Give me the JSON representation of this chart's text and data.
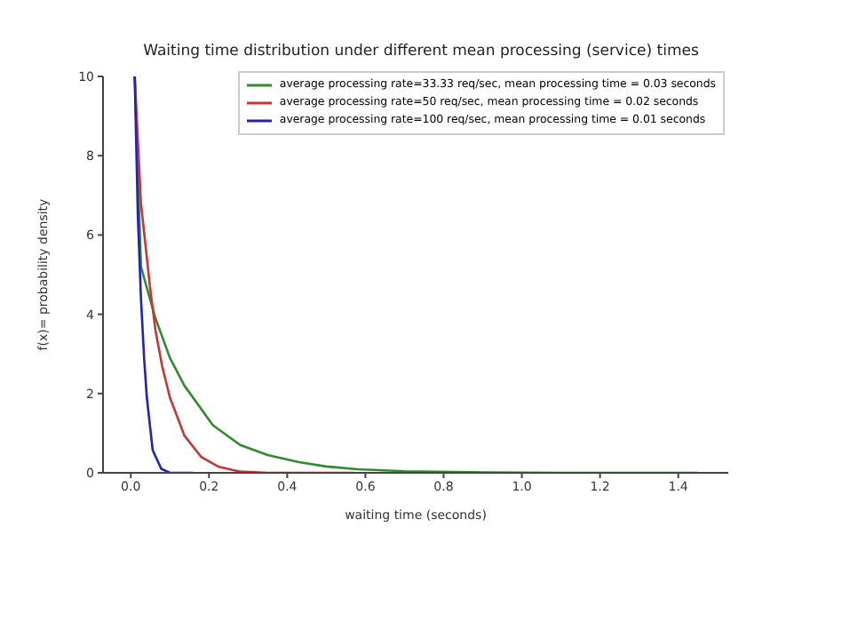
{
  "chart_data": {
    "type": "line",
    "title": "Waiting time distribution under different mean processing (service) times",
    "xlabel": "waiting time (seconds)",
    "ylabel": "f(x)= probability density",
    "series": [
      {
        "name": "average processing rate=33.33 req/sec, mean processing time = 0.03 seconds",
        "color": "#2e8b2e",
        "x": [
          0.01,
          0.026,
          0.063,
          0.1,
          0.137,
          0.21,
          0.28,
          0.35,
          0.43,
          0.5,
          0.58,
          0.7,
          0.9,
          1.1,
          1.3,
          1.45
        ],
        "values": [
          10,
          5.2,
          3.9,
          2.9,
          2.2,
          1.2,
          0.7,
          0.45,
          0.27,
          0.16,
          0.09,
          0.04,
          0.01,
          0,
          0,
          0
        ]
      },
      {
        "name": "average processing rate=50 req/sec, mean processing time = 0.02 seconds",
        "color": "#cc3333",
        "x": [
          0.01,
          0.026,
          0.049,
          0.063,
          0.08,
          0.1,
          0.137,
          0.18,
          0.225,
          0.28,
          0.35,
          0.45,
          0.57
        ],
        "values": [
          10,
          6.8,
          4.7,
          3.6,
          2.7,
          1.9,
          0.94,
          0.4,
          0.15,
          0.03,
          0,
          0,
          0
        ]
      },
      {
        "name": "average processing rate=100 req/sec, mean processing time = 0.01 seconds",
        "color": "#2222bb",
        "x": [
          0.01,
          0.018,
          0.026,
          0.034,
          0.041,
          0.056,
          0.078,
          0.1,
          0.16
        ],
        "values": [
          10,
          6.5,
          4.4,
          2.9,
          1.9,
          0.57,
          0.1,
          0,
          0
        ]
      }
    ],
    "xlim": [
      -0.071,
      1.528
    ],
    "xticks": [
      {
        "value": 0,
        "label": "0.0"
      },
      {
        "value": 0.2,
        "label": "0.2"
      },
      {
        "value": 0.4,
        "label": "0.4"
      },
      {
        "value": 0.6,
        "label": "0.6"
      },
      {
        "value": 0.8,
        "label": "0.8"
      },
      {
        "value": 1,
        "label": "1.0"
      },
      {
        "value": 1.2,
        "label": "1.2"
      },
      {
        "value": 1.4,
        "label": "1.4"
      }
    ],
    "ylim": [
      0,
      10
    ],
    "yticks": [
      0,
      2,
      4,
      6,
      8,
      10
    ],
    "legend": "top right",
    "marker": "none",
    "line_style": "solid",
    "grid": false
  }
}
